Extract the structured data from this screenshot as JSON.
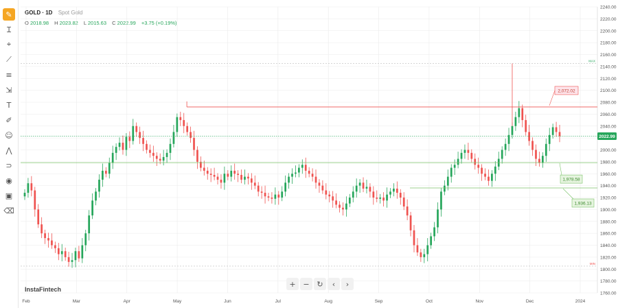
{
  "legend": {
    "symbol": "GOLD · 1D",
    "description": "Spot Gold",
    "open_label": "O",
    "open": "2018.98",
    "high_label": "H",
    "high": "2023.82",
    "low_label": "L",
    "low": "2015.63",
    "close_label": "C",
    "close": "2022.99",
    "change": "+3.75 (+0.19%)"
  },
  "toolbar": {
    "icons": [
      "pencil-icon",
      "text-cursor-icon",
      "crosshair-icon",
      "trend-line-icon",
      "fib-icon",
      "measure-icon",
      "text-icon",
      "brush-icon",
      "emoji-icon",
      "pattern-icon",
      "magnet-icon",
      "eye-icon",
      "lock-icon",
      "trash-icon"
    ]
  },
  "navigation": {
    "zoom_in": "+",
    "zoom_out": "−",
    "reset": "↻",
    "left": "‹",
    "right": "›"
  },
  "watermark": "InstaFintech",
  "colors": {
    "up": "#26a65b",
    "down": "#ef5350",
    "resistance": "#ef5350",
    "support": "#7cc36a",
    "current_price": "#26a65b",
    "grid": "#ebebeb"
  },
  "chart_data": {
    "type": "candlestick",
    "y_axis": {
      "min": 1760,
      "max": 2240,
      "step": 20,
      "tick_labels": [
        "1760.00",
        "1780.00",
        "1800.00",
        "1820.00",
        "1840.00",
        "1860.00",
        "1880.00",
        "1900.00",
        "1920.00",
        "1940.00",
        "1960.00",
        "1980.00",
        "2000.00",
        "2020.00",
        "2040.00",
        "2060.00",
        "2080.00",
        "2100.00",
        "2120.00",
        "2140.00",
        "2160.00",
        "2180.00",
        "2200.00",
        "2220.00",
        "2240.00"
      ]
    },
    "x_axis": {
      "labels": [
        "Feb",
        "Mar",
        "Apr",
        "May",
        "Jun",
        "Jul",
        "Aug",
        "Sep",
        "Oct",
        "Nov",
        "Dec",
        "2024"
      ]
    },
    "max_marker": {
      "label": "MAX",
      "value": 2145
    },
    "min_marker": {
      "label": "MIN",
      "value": 1805
    },
    "current_price": {
      "label": "2022.99",
      "value": 2022.99
    },
    "resistance": {
      "label": "2,072.02",
      "value": 2072.02,
      "from": "May"
    },
    "supports": [
      {
        "label": "1,978.58",
        "value": 1978.58
      },
      {
        "label": "1,936.13",
        "value": 1936.13
      }
    ],
    "series": [
      1928,
      1944,
      1932,
      1900,
      1875,
      1860,
      1852,
      1848,
      1840,
      1835,
      1825,
      1830,
      1820,
      1812,
      1815,
      1830,
      1818,
      1840,
      1860,
      1890,
      1915,
      1930,
      1950,
      1965,
      1960,
      1978,
      1995,
      2005,
      2012,
      2000,
      2022,
      2015,
      2040,
      2030,
      2020,
      2010,
      2000,
      1995,
      1990,
      1985,
      1982,
      1988,
      1995,
      2010,
      2030,
      2055,
      2050,
      2040,
      2030,
      2020,
      2000,
      1980,
      1970,
      1965,
      1960,
      1958,
      1955,
      1950,
      1945,
      1960,
      1955,
      1965,
      1960,
      1958,
      1950,
      1955,
      1952,
      1945,
      1940,
      1930,
      1928,
      1922,
      1920,
      1918,
      1925,
      1920,
      1930,
      1945,
      1955,
      1960,
      1962,
      1970,
      1975,
      1965,
      1960,
      1955,
      1945,
      1940,
      1932,
      1925,
      1922,
      1915,
      1908,
      1903,
      1900,
      1910,
      1920,
      1930,
      1940,
      1945,
      1935,
      1938,
      1930,
      1920,
      1918,
      1920,
      1915,
      1925,
      1930,
      1935,
      1928,
      1920,
      1905,
      1890,
      1865,
      1840,
      1828,
      1820,
      1825,
      1840,
      1855,
      1870,
      1900,
      1930,
      1940,
      1955,
      1970,
      1975,
      1985,
      1995,
      2000,
      1995,
      1985,
      1975,
      1970,
      1960,
      1955,
      1948,
      1960,
      1972,
      1985,
      2000,
      2010,
      2025,
      2040,
      2055,
      2070,
      2050,
      2030,
      2015,
      2000,
      1985,
      1978,
      1990,
      2010,
      2025,
      2038,
      2030,
      2022.99
    ]
  }
}
